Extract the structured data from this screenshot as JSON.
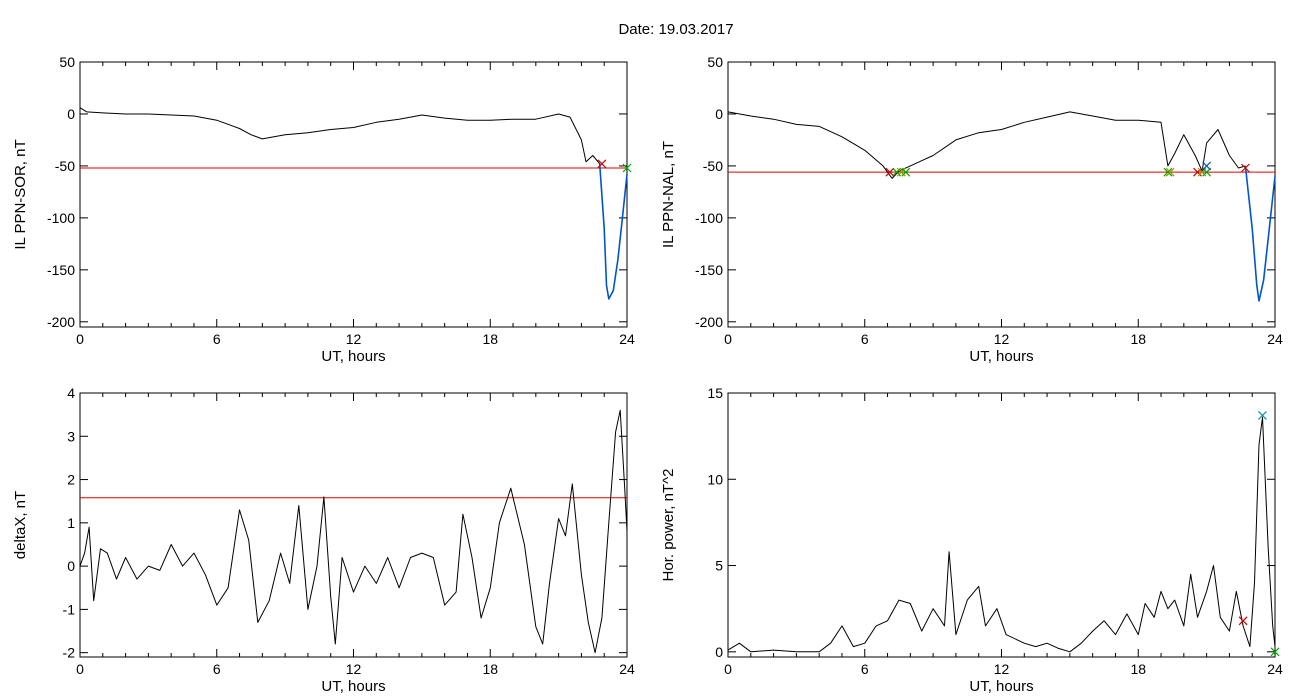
{
  "header": {
    "date_label": "Date:  19.03.2017"
  },
  "chart_data": [
    {
      "type": "line",
      "id": "p1",
      "xlabel": "UT, hours",
      "ylabel": "IL PPN-SOR, nT",
      "xlim": [
        0,
        24
      ],
      "ylim": [
        -205,
        50
      ],
      "xticks": [
        0,
        6,
        12,
        18,
        24
      ],
      "yticks": [
        50,
        0,
        -50,
        -100,
        -150,
        -200
      ],
      "threshold": -52,
      "series": [
        {
          "color": "#000000",
          "points": [
            [
              0,
              6
            ],
            [
              0.3,
              2
            ],
            [
              1,
              1
            ],
            [
              2,
              0
            ],
            [
              3,
              0
            ],
            [
              4,
              -1
            ],
            [
              5,
              -2
            ],
            [
              6,
              -6
            ],
            [
              7,
              -14
            ],
            [
              7.5,
              -20
            ],
            [
              8,
              -24
            ],
            [
              9,
              -20
            ],
            [
              10,
              -18
            ],
            [
              11,
              -15
            ],
            [
              12,
              -13
            ],
            [
              13,
              -8
            ],
            [
              14,
              -5
            ],
            [
              15,
              -1
            ],
            [
              16,
              -4
            ],
            [
              17,
              -6
            ],
            [
              18,
              -6
            ],
            [
              19,
              -5
            ],
            [
              20,
              -5
            ],
            [
              21,
              0
            ],
            [
              21.5,
              -3
            ],
            [
              22,
              -25
            ],
            [
              22.2,
              -46
            ],
            [
              22.5,
              -40
            ],
            [
              22.8,
              -48
            ]
          ]
        },
        {
          "color": "#0055cc",
          "points": [
            [
              22.8,
              -48
            ],
            [
              23.0,
              -110
            ],
            [
              23.1,
              -165
            ],
            [
              23.2,
              -178
            ],
            [
              23.4,
              -170
            ],
            [
              23.6,
              -140
            ],
            [
              23.8,
              -100
            ],
            [
              24,
              -58
            ]
          ]
        }
      ],
      "markers": [
        {
          "x": 22.9,
          "y": -48,
          "color": "#cc0000"
        },
        {
          "x": 24,
          "y": -52,
          "color": "#00aa00"
        }
      ]
    },
    {
      "type": "line",
      "id": "p2",
      "xlabel": "UT, hours",
      "ylabel": "IL PPN-NAL, nT",
      "xlim": [
        0,
        24
      ],
      "ylim": [
        -205,
        50
      ],
      "xticks": [
        0,
        6,
        12,
        18,
        24
      ],
      "yticks": [
        50,
        0,
        -50,
        -100,
        -150,
        -200
      ],
      "threshold": -56,
      "series": [
        {
          "color": "#000000",
          "points": [
            [
              0,
              2
            ],
            [
              1,
              -2
            ],
            [
              2,
              -5
            ],
            [
              3,
              -10
            ],
            [
              4,
              -12
            ],
            [
              5,
              -22
            ],
            [
              6,
              -35
            ],
            [
              6.8,
              -50
            ],
            [
              7.2,
              -62
            ],
            [
              7.5,
              -55
            ],
            [
              8,
              -50
            ],
            [
              8.5,
              -45
            ],
            [
              9,
              -40
            ],
            [
              10,
              -25
            ],
            [
              11,
              -18
            ],
            [
              12,
              -15
            ],
            [
              13,
              -8
            ],
            [
              14,
              -3
            ],
            [
              15,
              2
            ],
            [
              16,
              -2
            ],
            [
              17,
              -6
            ],
            [
              18,
              -6
            ],
            [
              19,
              -8
            ],
            [
              19.3,
              -50
            ],
            [
              19.6,
              -38
            ],
            [
              20,
              -20
            ],
            [
              20.5,
              -40
            ],
            [
              20.8,
              -55
            ],
            [
              21,
              -28
            ],
            [
              21.5,
              -15
            ],
            [
              22,
              -40
            ],
            [
              22.4,
              -52
            ],
            [
              22.7,
              -50
            ]
          ]
        },
        {
          "color": "#0055cc",
          "points": [
            [
              22.7,
              -50
            ],
            [
              23.0,
              -110
            ],
            [
              23.2,
              -165
            ],
            [
              23.3,
              -180
            ],
            [
              23.5,
              -160
            ],
            [
              23.7,
              -120
            ],
            [
              24,
              -60
            ]
          ]
        }
      ],
      "markers": [
        {
          "x": 7.1,
          "y": -56,
          "color": "#cc0000"
        },
        {
          "x": 7.4,
          "y": -56,
          "color": "#00aa00"
        },
        {
          "x": 7.6,
          "y": -56,
          "color": "#999900"
        },
        {
          "x": 7.8,
          "y": -56,
          "color": "#00aa00"
        },
        {
          "x": 19.3,
          "y": -56,
          "color": "#00aa00"
        },
        {
          "x": 19.4,
          "y": -56,
          "color": "#999900"
        },
        {
          "x": 20.6,
          "y": -56,
          "color": "#cc0000"
        },
        {
          "x": 20.8,
          "y": -56,
          "color": "#999900"
        },
        {
          "x": 21.0,
          "y": -56,
          "color": "#00aa00"
        },
        {
          "x": 21.0,
          "y": -50,
          "color": "#0055cc"
        },
        {
          "x": 22.7,
          "y": -52,
          "color": "#cc0000"
        }
      ]
    },
    {
      "type": "line",
      "id": "p3",
      "xlabel": "UT, hours",
      "ylabel": "deltaX, nT",
      "xlim": [
        0,
        24
      ],
      "ylim": [
        -2.1,
        4.0
      ],
      "xticks": [
        0,
        6,
        12,
        18,
        24
      ],
      "yticks": [
        4,
        3,
        2,
        1,
        0,
        -1,
        -2
      ],
      "threshold": 1.58,
      "series": [
        {
          "color": "#000000",
          "points": [
            [
              0,
              0
            ],
            [
              0.2,
              0.3
            ],
            [
              0.4,
              0.9
            ],
            [
              0.6,
              -0.8
            ],
            [
              0.9,
              0.4
            ],
            [
              1.2,
              0.3
            ],
            [
              1.6,
              -0.3
            ],
            [
              2,
              0.2
            ],
            [
              2.5,
              -0.3
            ],
            [
              3,
              0
            ],
            [
              3.5,
              -0.1
            ],
            [
              4,
              0.5
            ],
            [
              4.5,
              0
            ],
            [
              5,
              0.3
            ],
            [
              5.5,
              -0.2
            ],
            [
              6,
              -0.9
            ],
            [
              6.5,
              -0.5
            ],
            [
              7,
              1.3
            ],
            [
              7.4,
              0.6
            ],
            [
              7.8,
              -1.3
            ],
            [
              8.3,
              -0.8
            ],
            [
              8.8,
              0.3
            ],
            [
              9.2,
              -0.4
            ],
            [
              9.6,
              1.4
            ],
            [
              10,
              -1.0
            ],
            [
              10.4,
              0
            ],
            [
              10.7,
              1.6
            ],
            [
              11,
              -0.7
            ],
            [
              11.2,
              -1.8
            ],
            [
              11.5,
              0.2
            ],
            [
              12,
              -0.6
            ],
            [
              12.5,
              0
            ],
            [
              13,
              -0.4
            ],
            [
              13.5,
              0.2
            ],
            [
              14,
              -0.5
            ],
            [
              14.5,
              0.2
            ],
            [
              15,
              0.3
            ],
            [
              15.5,
              0.2
            ],
            [
              16,
              -0.9
            ],
            [
              16.5,
              -0.6
            ],
            [
              16.8,
              1.2
            ],
            [
              17.2,
              0.2
            ],
            [
              17.6,
              -1.2
            ],
            [
              18,
              -0.5
            ],
            [
              18.4,
              1.0
            ],
            [
              18.9,
              1.8
            ],
            [
              19.5,
              0.5
            ],
            [
              20,
              -1.4
            ],
            [
              20.3,
              -1.8
            ],
            [
              20.6,
              -0.4
            ],
            [
              21,
              1.1
            ],
            [
              21.3,
              0.7
            ],
            [
              21.6,
              1.9
            ],
            [
              22,
              -0.2
            ],
            [
              22.3,
              -1.3
            ],
            [
              22.6,
              -2.0
            ],
            [
              22.9,
              -1.2
            ],
            [
              23.2,
              1.0
            ],
            [
              23.5,
              3.1
            ],
            [
              23.7,
              3.6
            ],
            [
              23.9,
              1.8
            ],
            [
              24,
              0.8
            ]
          ]
        }
      ],
      "markers": []
    },
    {
      "type": "line",
      "id": "p4",
      "xlabel": "UT, hours",
      "ylabel": "Hor. power, nT^2",
      "xlim": [
        0,
        24
      ],
      "ylim": [
        -0.3,
        15
      ],
      "xticks": [
        0,
        6,
        12,
        18,
        24
      ],
      "yticks": [
        15,
        10,
        5,
        0
      ],
      "threshold": null,
      "series": [
        {
          "color": "#000000",
          "points": [
            [
              0,
              0.1
            ],
            [
              0.5,
              0.5
            ],
            [
              1,
              0
            ],
            [
              2,
              0.1
            ],
            [
              3,
              0
            ],
            [
              4,
              0
            ],
            [
              4.5,
              0.5
            ],
            [
              5,
              1.5
            ],
            [
              5.5,
              0.3
            ],
            [
              6,
              0.5
            ],
            [
              6.5,
              1.5
            ],
            [
              7,
              1.8
            ],
            [
              7.5,
              3.0
            ],
            [
              8,
              2.8
            ],
            [
              8.5,
              1.2
            ],
            [
              9,
              2.5
            ],
            [
              9.5,
              1.5
            ],
            [
              9.7,
              5.8
            ],
            [
              10,
              1.0
            ],
            [
              10.5,
              3.0
            ],
            [
              11,
              3.8
            ],
            [
              11.3,
              1.5
            ],
            [
              11.8,
              2.5
            ],
            [
              12.2,
              1.0
            ],
            [
              13,
              0.5
            ],
            [
              13.5,
              0.3
            ],
            [
              14,
              0.5
            ],
            [
              14.5,
              0.2
            ],
            [
              15,
              0
            ],
            [
              15.5,
              0.5
            ],
            [
              16,
              1.2
            ],
            [
              16.5,
              1.8
            ],
            [
              17,
              1.0
            ],
            [
              17.5,
              2.2
            ],
            [
              18,
              1.0
            ],
            [
              18.3,
              2.8
            ],
            [
              18.7,
              2.0
            ],
            [
              19,
              3.5
            ],
            [
              19.3,
              2.5
            ],
            [
              19.6,
              3.0
            ],
            [
              20,
              1.5
            ],
            [
              20.3,
              4.5
            ],
            [
              20.6,
              2.0
            ],
            [
              21,
              3.5
            ],
            [
              21.3,
              5.0
            ],
            [
              21.6,
              2.0
            ],
            [
              22,
              1.2
            ],
            [
              22.3,
              3.5
            ],
            [
              22.6,
              1.5
            ],
            [
              22.9,
              0.3
            ],
            [
              23.1,
              4.0
            ],
            [
              23.3,
              12.0
            ],
            [
              23.45,
              13.6
            ],
            [
              23.7,
              6.0
            ],
            [
              23.9,
              1.5
            ],
            [
              24,
              0.3
            ]
          ]
        }
      ],
      "markers": [
        {
          "x": 23.45,
          "y": 13.7,
          "color": "#0099aa"
        },
        {
          "x": 22.6,
          "y": 1.8,
          "color": "#cc0000"
        },
        {
          "x": 24,
          "y": 0,
          "color": "#00aa00"
        }
      ]
    }
  ]
}
